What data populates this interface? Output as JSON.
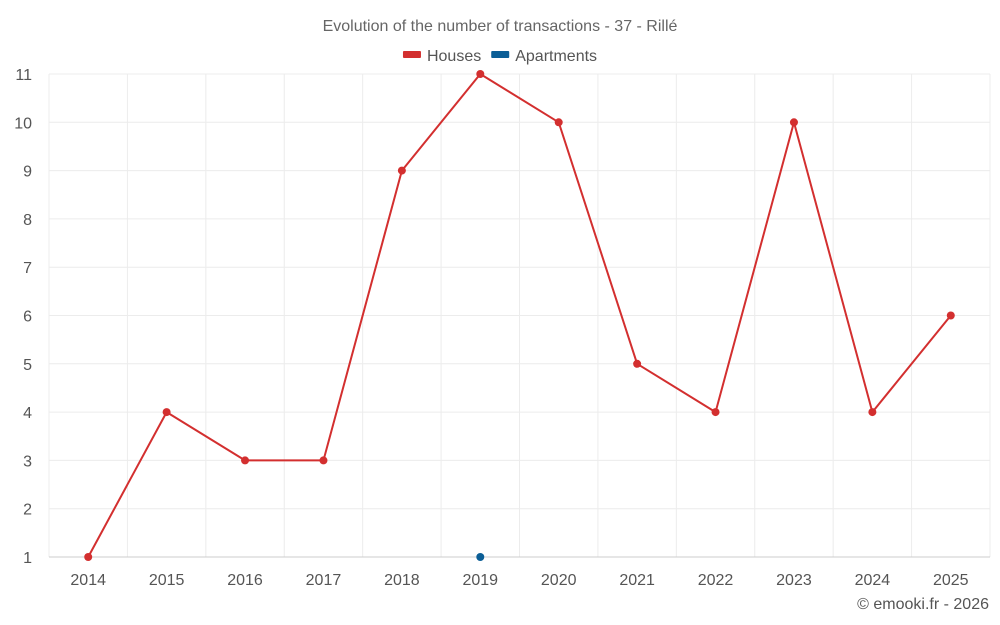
{
  "chart_data": {
    "type": "line",
    "title": "Evolution of the number of transactions - 37 - Rillé",
    "categories": [
      "2014",
      "2015",
      "2016",
      "2017",
      "2018",
      "2019",
      "2020",
      "2021",
      "2022",
      "2023",
      "2024",
      "2025"
    ],
    "y_ticks": [
      1,
      2,
      3,
      4,
      5,
      6,
      7,
      8,
      9,
      10,
      11
    ],
    "ylim": [
      1,
      11
    ],
    "grid": true,
    "legend_position": "top-center",
    "series": [
      {
        "name": "Houses",
        "color": "#d32f2f",
        "values": [
          1,
          4,
          3,
          3,
          9,
          11,
          10,
          5,
          4,
          10,
          4,
          6
        ]
      },
      {
        "name": "Apartments",
        "color": "#0b5e96",
        "values": [
          null,
          null,
          null,
          null,
          null,
          1,
          null,
          null,
          null,
          null,
          null,
          null
        ]
      }
    ],
    "credit": "© emooki.fr - 2026"
  }
}
